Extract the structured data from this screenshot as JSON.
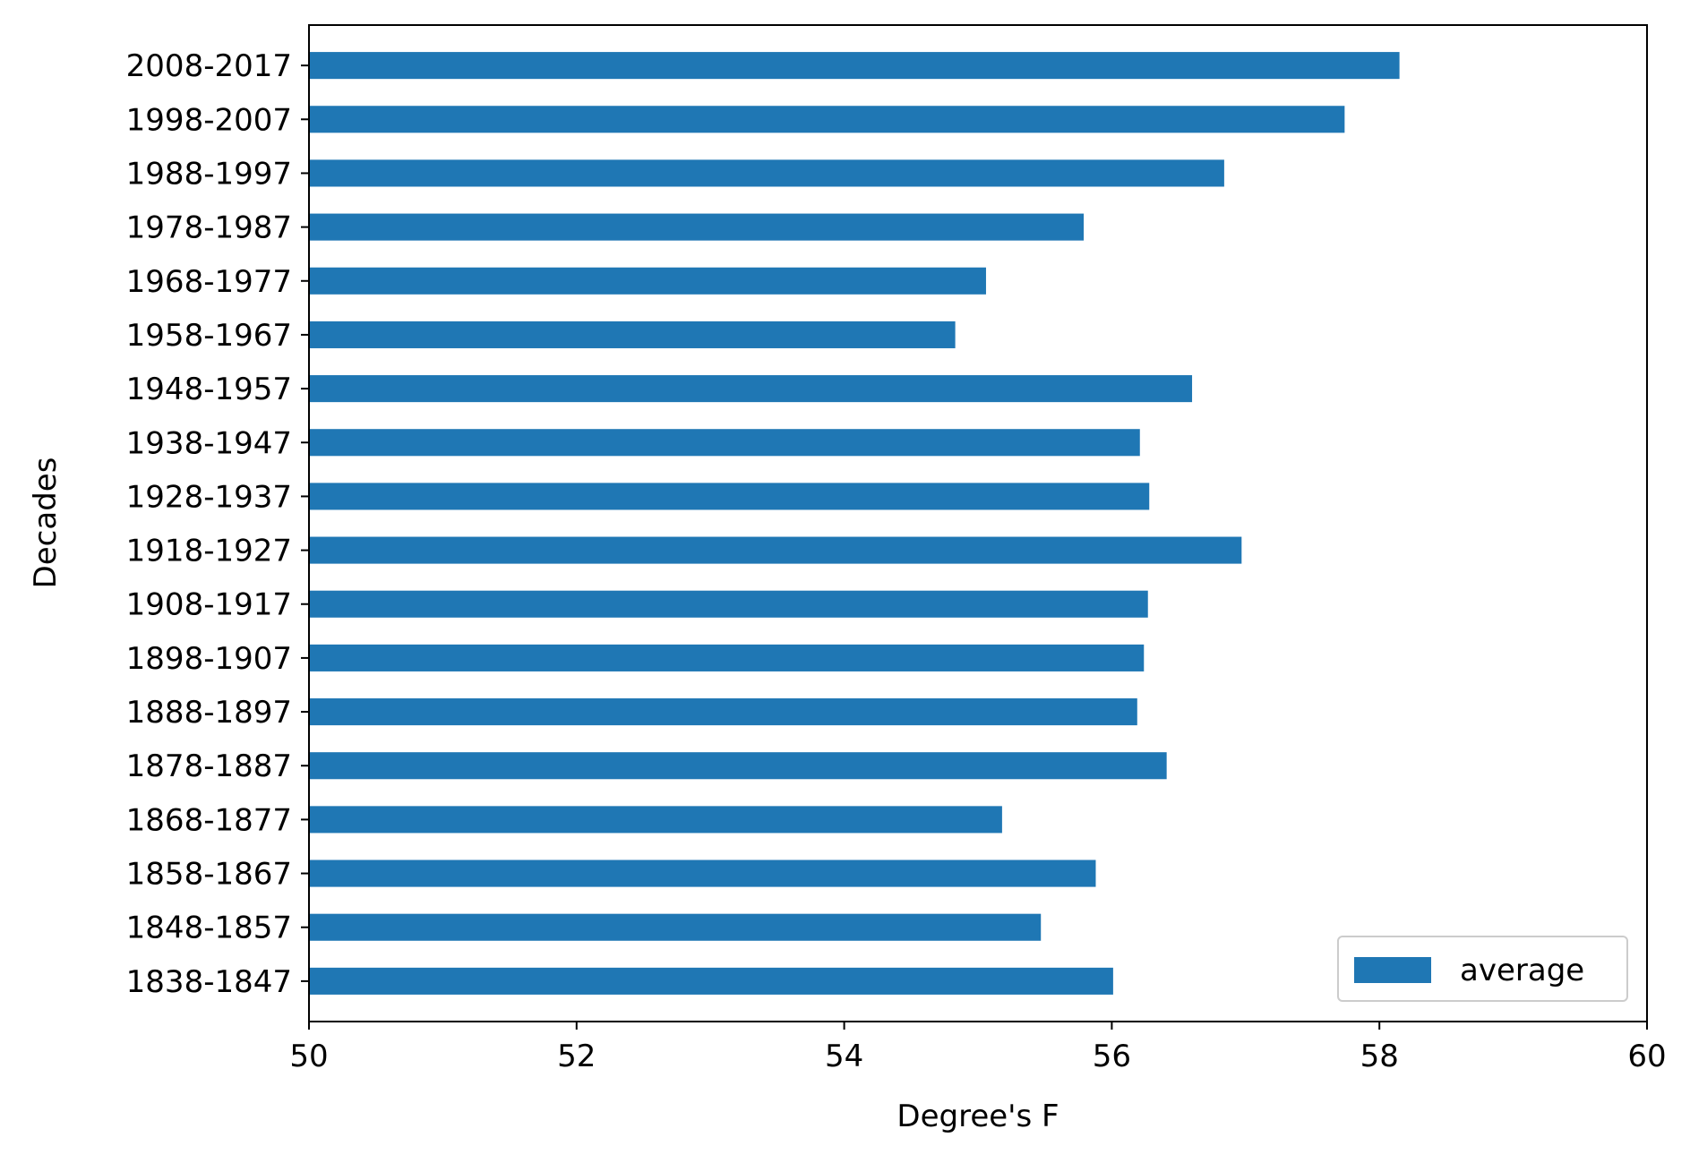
{
  "chart_data": {
    "type": "bar",
    "orientation": "horizontal",
    "categories": [
      "1838-1847",
      "1848-1857",
      "1858-1867",
      "1868-1877",
      "1878-1887",
      "1888-1897",
      "1898-1907",
      "1908-1917",
      "1918-1927",
      "1928-1937",
      "1938-1947",
      "1948-1957",
      "1958-1967",
      "1968-1977",
      "1978-1987",
      "1988-1997",
      "1998-2007",
      "2008-2017"
    ],
    "series": [
      {
        "name": "average",
        "color": "#1f77b4",
        "values": [
          56.01,
          55.47,
          55.88,
          55.18,
          56.41,
          56.19,
          56.24,
          56.27,
          56.97,
          56.28,
          56.21,
          56.6,
          54.83,
          55.06,
          55.79,
          56.84,
          57.74,
          58.15
        ]
      }
    ],
    "title": "",
    "xlabel": "Degree's F",
    "ylabel": "Decades",
    "xlim": [
      50,
      60
    ],
    "xticks": [
      "50",
      "52",
      "54",
      "56",
      "58",
      "60"
    ],
    "grid": false,
    "legend_position": "lower right"
  }
}
